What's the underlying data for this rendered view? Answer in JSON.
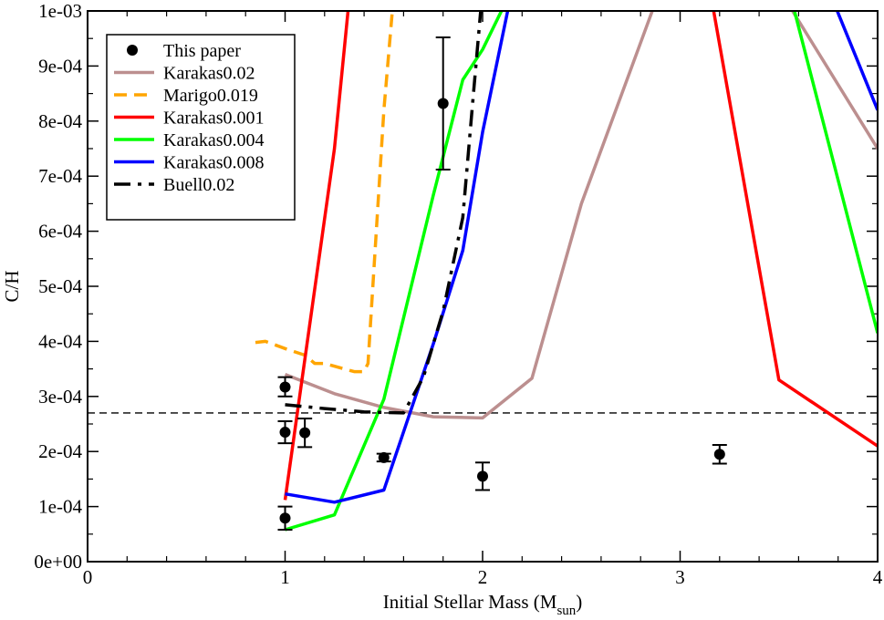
{
  "chart_data": {
    "type": "line",
    "title": "",
    "xlabel": "Initial Stellar Mass (M",
    "xlabel_sub": "sun",
    "xlabel_close": ")",
    "ylabel": "C/H",
    "xlim": [
      0,
      4
    ],
    "ylim": [
      0,
      0.001
    ],
    "x_ticks": [
      0,
      1,
      2,
      3,
      4
    ],
    "x_tick_labels": [
      "0",
      "1",
      "2",
      "3",
      "4"
    ],
    "y_ticks": [
      0,
      0.0001,
      0.0002,
      0.0003,
      0.0004,
      0.0005,
      0.0006,
      0.0007,
      0.0008,
      0.0009,
      0.001
    ],
    "y_tick_labels": [
      "0e+00",
      "1e-04",
      "2e-04",
      "3e-04",
      "4e-04",
      "5e-04",
      "6e-04",
      "7e-04",
      "8e-04",
      "9e-04",
      "1e-03"
    ],
    "reference_line": {
      "y": 0.00027,
      "color": "#000000",
      "style": "dashed"
    },
    "points": {
      "name": "This paper",
      "color": "#000000",
      "data": [
        {
          "x": 1.0,
          "y": 0.000317,
          "lo": 0.0003,
          "hi": 0.000335
        },
        {
          "x": 1.0,
          "y": 0.000235,
          "lo": 0.000215,
          "hi": 0.000255
        },
        {
          "x": 1.1,
          "y": 0.000234,
          "lo": 0.000208,
          "hi": 0.00026
        },
        {
          "x": 1.0,
          "y": 7.9e-05,
          "lo": 5.8e-05,
          "hi": 0.0001
        },
        {
          "x": 1.5,
          "y": 0.000189,
          "lo": 0.000182,
          "hi": 0.000196
        },
        {
          "x": 1.8,
          "y": 0.000832,
          "lo": 0.000712,
          "hi": 0.000952
        },
        {
          "x": 2.0,
          "y": 0.000155,
          "lo": 0.00013,
          "hi": 0.00018
        },
        {
          "x": 3.2,
          "y": 0.000195,
          "lo": 0.000178,
          "hi": 0.000212
        }
      ]
    },
    "series": [
      {
        "name": "Karakas0.02",
        "color": "#bc8f8f",
        "style": "solid",
        "x": [
          1.0,
          1.25,
          1.5,
          1.75,
          2.0,
          2.25,
          2.5,
          2.9,
          3.2,
          3.5,
          4.0
        ],
        "y": [
          0.00034,
          0.000305,
          0.00028,
          0.000263,
          0.000261,
          0.000333,
          0.00065,
          0.00104,
          0.00104,
          0.00104,
          0.00075
        ]
      },
      {
        "name": "Marigo0.019",
        "color": "#ffa500",
        "style": "dash",
        "x": [
          0.85,
          0.9,
          1.0,
          1.1,
          1.15,
          1.2,
          1.3,
          1.35,
          1.4,
          1.42,
          1.5,
          1.55
        ],
        "y": [
          0.000398,
          0.0004,
          0.000387,
          0.000375,
          0.00036,
          0.00036,
          0.00035,
          0.000345,
          0.000345,
          0.00036,
          0.00082,
          0.00103
        ]
      },
      {
        "name": "Karakas0.001",
        "color": "#ff0000",
        "style": "solid",
        "x": [
          1.0,
          1.25,
          1.33,
          3.15,
          3.5,
          4.0
        ],
        "y": [
          0.000112,
          0.00075,
          0.00104,
          0.00104,
          0.00033,
          0.00021
        ]
      },
      {
        "name": "Karakas0.004",
        "color": "#00ff00",
        "style": "solid",
        "x": [
          1.0,
          1.25,
          1.5,
          1.75,
          1.9,
          2.0,
          2.15,
          3.55,
          4.0
        ],
        "y": [
          5.8e-05,
          8.5e-05,
          0.000295,
          0.000665,
          0.000875,
          0.00093,
          0.00104,
          0.00104,
          0.000415
        ]
      },
      {
        "name": "Karakas0.008",
        "color": "#0000ff",
        "style": "solid",
        "x": [
          1.0,
          1.25,
          1.5,
          1.75,
          1.9,
          2.0,
          2.15,
          3.75,
          4.0
        ],
        "y": [
          0.000123,
          0.000108,
          0.00013,
          0.000395,
          0.000565,
          0.00078,
          0.00104,
          0.00104,
          0.00082
        ]
      },
      {
        "name": "Buell0.02",
        "color": "#000000",
        "style": "dashdot",
        "x": [
          1.0,
          1.2,
          1.4,
          1.6,
          1.7,
          1.8,
          1.9,
          1.95,
          2.0
        ],
        "y": [
          0.000285,
          0.000278,
          0.000272,
          0.00027,
          0.000335,
          0.000455,
          0.000625,
          0.000835,
          0.00104
        ]
      }
    ],
    "legend_position": "top-left"
  }
}
